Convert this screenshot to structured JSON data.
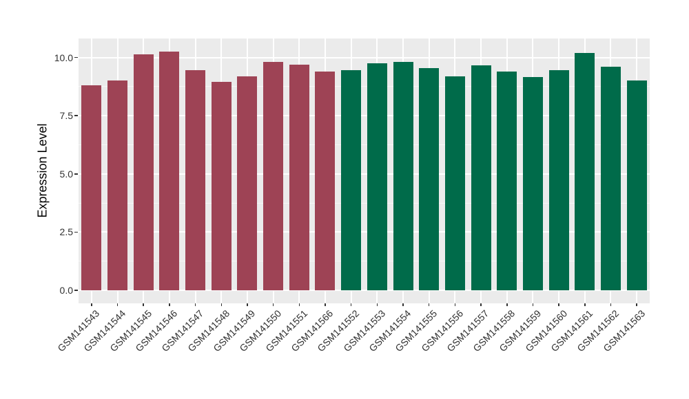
{
  "chart_data": {
    "type": "bar",
    "title": "",
    "xlabel": "",
    "ylabel": "Expression Level",
    "ylim": [
      0,
      10.8
    ],
    "yticks": [
      0.0,
      2.5,
      5.0,
      7.5,
      10.0
    ],
    "ytick_labels": [
      "0.0",
      "2.5",
      "5.0",
      "7.5",
      "10.0"
    ],
    "yticks_minor": [
      1.25,
      3.75,
      6.25,
      8.75
    ],
    "grid": "major and minor horizontal white gridlines, vertical white gridlines at each category, gray panel",
    "legend": false,
    "categories": [
      "GSM141543",
      "GSM141544",
      "GSM141545",
      "GSM141546",
      "GSM141547",
      "GSM141548",
      "GSM141549",
      "GSM141550",
      "GSM141551",
      "GSM141566",
      "GSM141552",
      "GSM141553",
      "GSM141554",
      "GSM141555",
      "GSM141556",
      "GSM141557",
      "GSM141558",
      "GSM141559",
      "GSM141560",
      "GSM141561",
      "GSM141562",
      "GSM141563"
    ],
    "values": [
      8.8,
      9.0,
      10.15,
      10.25,
      9.45,
      8.95,
      9.2,
      9.8,
      9.7,
      9.4,
      9.45,
      9.75,
      9.8,
      9.55,
      9.2,
      9.65,
      9.4,
      9.15,
      9.45,
      10.2,
      9.6,
      9.0
    ],
    "bar_groups": [
      "group1",
      "group1",
      "group1",
      "group1",
      "group1",
      "group1",
      "group1",
      "group1",
      "group1",
      "group1",
      "group2",
      "group2",
      "group2",
      "group2",
      "group2",
      "group2",
      "group2",
      "group2",
      "group2",
      "group2",
      "group2",
      "group2"
    ],
    "group_colors": {
      "group1": "#9E4355",
      "group2": "#006B4A"
    },
    "panel_background": "#EBEBEB",
    "gridline_color": "#FFFFFF",
    "tick_color": "#333333",
    "axis_text_color": "#303030"
  }
}
